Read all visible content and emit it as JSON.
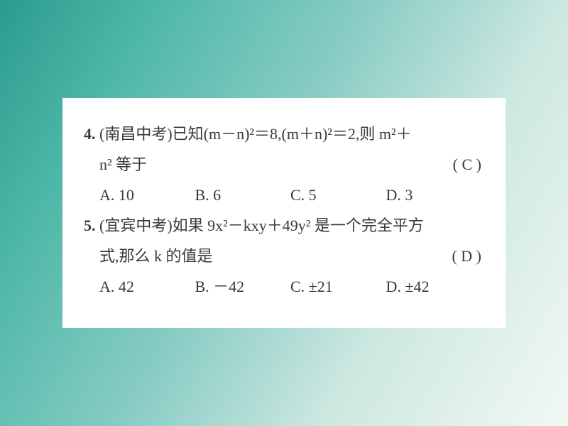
{
  "card": {
    "background_color": "#ffffff",
    "text_color": "#3a3a3a",
    "font_family": "SimSun / STSong serif",
    "font_size_pt": 16,
    "line_height": 1.95
  },
  "gradient": {
    "from": "#2b9b8f",
    "mid1": "#4fb8a8",
    "mid2": "#88ccc4",
    "mid3": "#cde8e1",
    "to": "#f2f8f4",
    "angle_deg": 120
  },
  "questions": [
    {
      "number": "4.",
      "source_prefix": "(南昌中考)",
      "line1_tail": "已知(m－n)²＝8,(m＋n)²＝2,则 m²＋",
      "line2_head": "n² 等于",
      "answer_display": "( C )",
      "choices": {
        "A": "A. 10",
        "B": "B. 6",
        "C": "C. 5",
        "D": "D. 3"
      }
    },
    {
      "number": "5.",
      "source_prefix": "(宜宾中考)",
      "line1_tail": "如果 9x²－kxy＋49y² 是一个完全平方",
      "line2_head": "式,那么 k 的值是",
      "answer_display": "( D )",
      "choices": {
        "A": "A. 42",
        "B": "B. －42",
        "C": "C. ±21",
        "D": "D. ±42"
      }
    }
  ]
}
